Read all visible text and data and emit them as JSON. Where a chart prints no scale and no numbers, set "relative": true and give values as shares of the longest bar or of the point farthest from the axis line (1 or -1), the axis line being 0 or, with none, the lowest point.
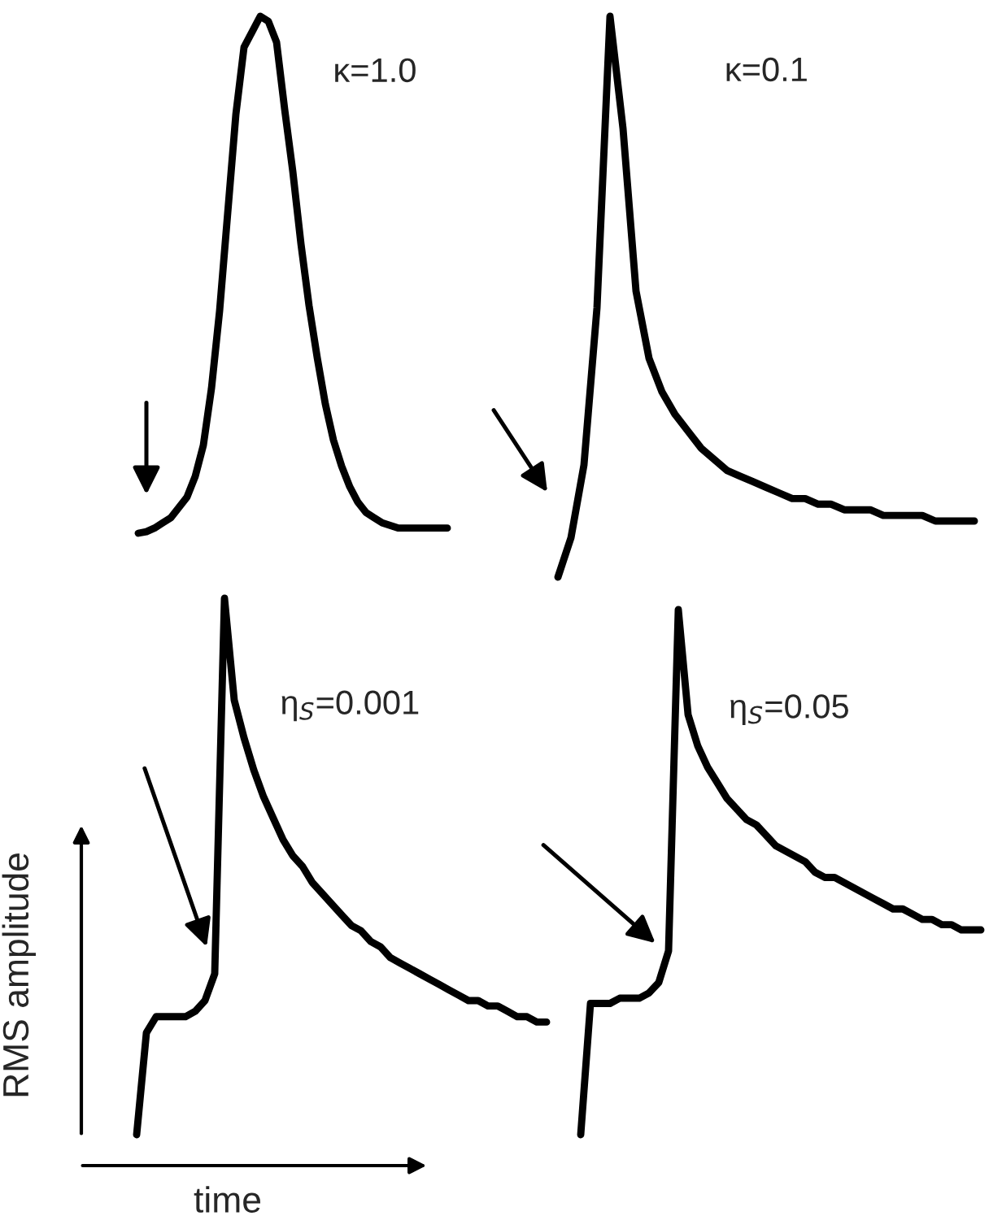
{
  "chart_data": [
    {
      "type": "line",
      "relative": true,
      "color": "#000000",
      "annotations": [
        "κ=1.0"
      ],
      "categories": [
        null,
        null,
        null,
        null,
        null,
        null,
        null,
        null,
        null,
        null,
        null,
        null,
        null,
        null,
        null,
        null,
        null,
        null,
        null,
        null,
        null,
        null,
        null,
        null,
        null,
        null,
        null,
        null,
        null,
        null,
        null,
        null,
        null,
        null,
        null,
        null,
        null,
        null,
        null
      ],
      "values": [
        0,
        0.003,
        0.01,
        0.02,
        0.03,
        0.05,
        0.07,
        0.11,
        0.17,
        0.28,
        0.43,
        0.62,
        0.81,
        0.94,
        0.97,
        1.0,
        0.99,
        0.95,
        0.82,
        0.7,
        0.56,
        0.44,
        0.34,
        0.25,
        0.18,
        0.13,
        0.09,
        0.06,
        0.04,
        0.03,
        0.02,
        0.015,
        0.01,
        0.01,
        0.01,
        0.01,
        0.01,
        0.01,
        0.01
      ]
    },
    {
      "type": "line",
      "relative": true,
      "color": "#000000",
      "annotations": [
        "κ=0.1"
      ],
      "categories": [
        null,
        null,
        null,
        null,
        null,
        null,
        null,
        null,
        null,
        null,
        null,
        null,
        null,
        null,
        null,
        null,
        null,
        null,
        null,
        null,
        null,
        null,
        null,
        null,
        null,
        null,
        null,
        null,
        null,
        null,
        null,
        null,
        null
      ],
      "values": [
        0,
        0.07,
        0.2,
        0.48,
        1.0,
        0.8,
        0.51,
        0.39,
        0.33,
        0.29,
        0.26,
        0.23,
        0.21,
        0.19,
        0.18,
        0.17,
        0.16,
        0.15,
        0.14,
        0.14,
        0.13,
        0.13,
        0.12,
        0.12,
        0.12,
        0.11,
        0.11,
        0.11,
        0.11,
        0.1,
        0.1,
        0.1,
        0.1
      ]
    },
    {
      "type": "line",
      "relative": true,
      "color": "#000000",
      "annotations": [
        "η$_{S}$=0.001"
      ],
      "xlabel": "time",
      "ylabel": "RMS amplitude",
      "categories": [
        null,
        null,
        null,
        null,
        null,
        null,
        null,
        null,
        null,
        null,
        null,
        null,
        null,
        null,
        null,
        null,
        null,
        null,
        null,
        null,
        null,
        null,
        null,
        null,
        null,
        null,
        null,
        null,
        null,
        null,
        null,
        null,
        null,
        null,
        null,
        null,
        null,
        null,
        null,
        null,
        null,
        null,
        null
      ],
      "values": [
        0,
        0.19,
        0.22,
        0.22,
        0.22,
        0.22,
        0.23,
        0.25,
        0.3,
        1.0,
        0.81,
        0.74,
        0.68,
        0.63,
        0.59,
        0.55,
        0.52,
        0.5,
        0.47,
        0.45,
        0.43,
        0.41,
        0.39,
        0.38,
        0.36,
        0.35,
        0.33,
        0.32,
        0.31,
        0.3,
        0.29,
        0.28,
        0.27,
        0.26,
        0.25,
        0.25,
        0.24,
        0.24,
        0.23,
        0.22,
        0.22,
        0.21,
        0.21
      ]
    },
    {
      "type": "line",
      "relative": true,
      "color": "#000000",
      "annotations": [
        "η$_{S}$=0.05"
      ],
      "categories": [
        null,
        null,
        null,
        null,
        null,
        null,
        null,
        null,
        null,
        null,
        null,
        null,
        null,
        null,
        null,
        null,
        null,
        null,
        null,
        null,
        null,
        null,
        null,
        null,
        null,
        null,
        null,
        null,
        null,
        null,
        null,
        null,
        null,
        null,
        null,
        null,
        null,
        null,
        null,
        null,
        null,
        null
      ],
      "values": [
        0,
        0.25,
        0.25,
        0.25,
        0.26,
        0.26,
        0.26,
        0.27,
        0.29,
        0.35,
        1.0,
        0.8,
        0.74,
        0.7,
        0.67,
        0.64,
        0.62,
        0.6,
        0.59,
        0.57,
        0.55,
        0.54,
        0.53,
        0.52,
        0.5,
        0.49,
        0.49,
        0.48,
        0.47,
        0.46,
        0.45,
        0.44,
        0.43,
        0.43,
        0.42,
        0.41,
        0.41,
        0.4,
        0.4,
        0.39,
        0.39,
        0.39
      ]
    }
  ]
}
